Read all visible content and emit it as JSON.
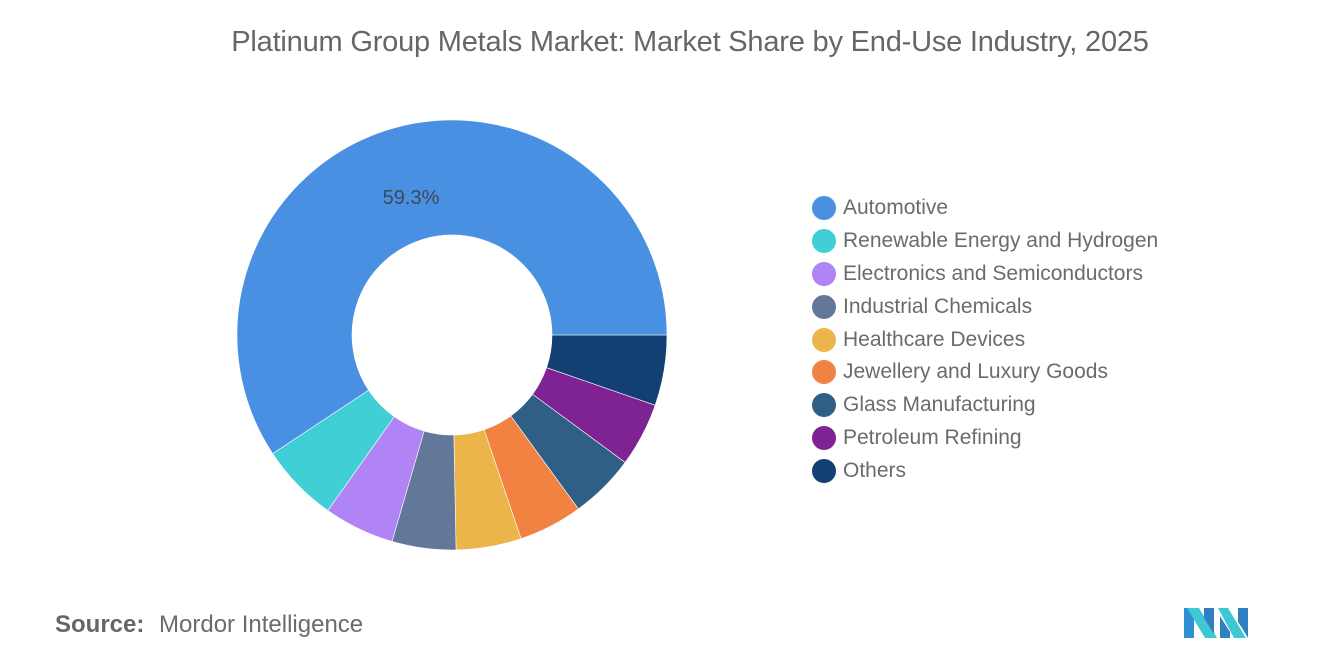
{
  "title": "Platinum Group Metals Market: Market Share by End-Use Industry, 2025",
  "source": {
    "label": "Source:",
    "value": "Mordor Intelligence"
  },
  "logo": {
    "icon": "mordor-intelligence-logo-icon",
    "colors": [
      "#3fc7d4",
      "#2f7fc1"
    ]
  },
  "chart_data": {
    "type": "pie",
    "variant": "donut",
    "title": "Platinum Group Metals Market: Market Share by End-Use Industry, 2025",
    "unit": "%",
    "legend_position": "right",
    "start_angle": "3 o'clock, clockwise",
    "categories": [
      "Automotive",
      "Renewable Energy and Hydrogen",
      "Electronics and Semiconductors",
      "Industrial Chemicals",
      "Healthcare Devices",
      "Jewellery and Luxury Goods",
      "Glass Manufacturing",
      "Petroleum Refining",
      "Others"
    ],
    "values": [
      59.3,
      5.9,
      5.3,
      4.8,
      4.9,
      4.8,
      4.9,
      4.8,
      5.3
    ],
    "colors": [
      "#4a90e2",
      "#3fcfd5",
      "#b084f5",
      "#637899",
      "#ebb54a",
      "#f28242",
      "#2f5f84",
      "#7f2293",
      "#143f73"
    ],
    "data_labels": [
      {
        "category": "Automotive",
        "text": "59.3%"
      }
    ],
    "draw_order_clockwise_from_3oclock": [
      "Others",
      "Petroleum Refining",
      "Glass Manufacturing",
      "Jewellery and Luxury Goods",
      "Healthcare Devices",
      "Industrial Chemicals",
      "Electronics and Semiconductors",
      "Renewable Energy and Hydrogen",
      "Automotive"
    ]
  }
}
